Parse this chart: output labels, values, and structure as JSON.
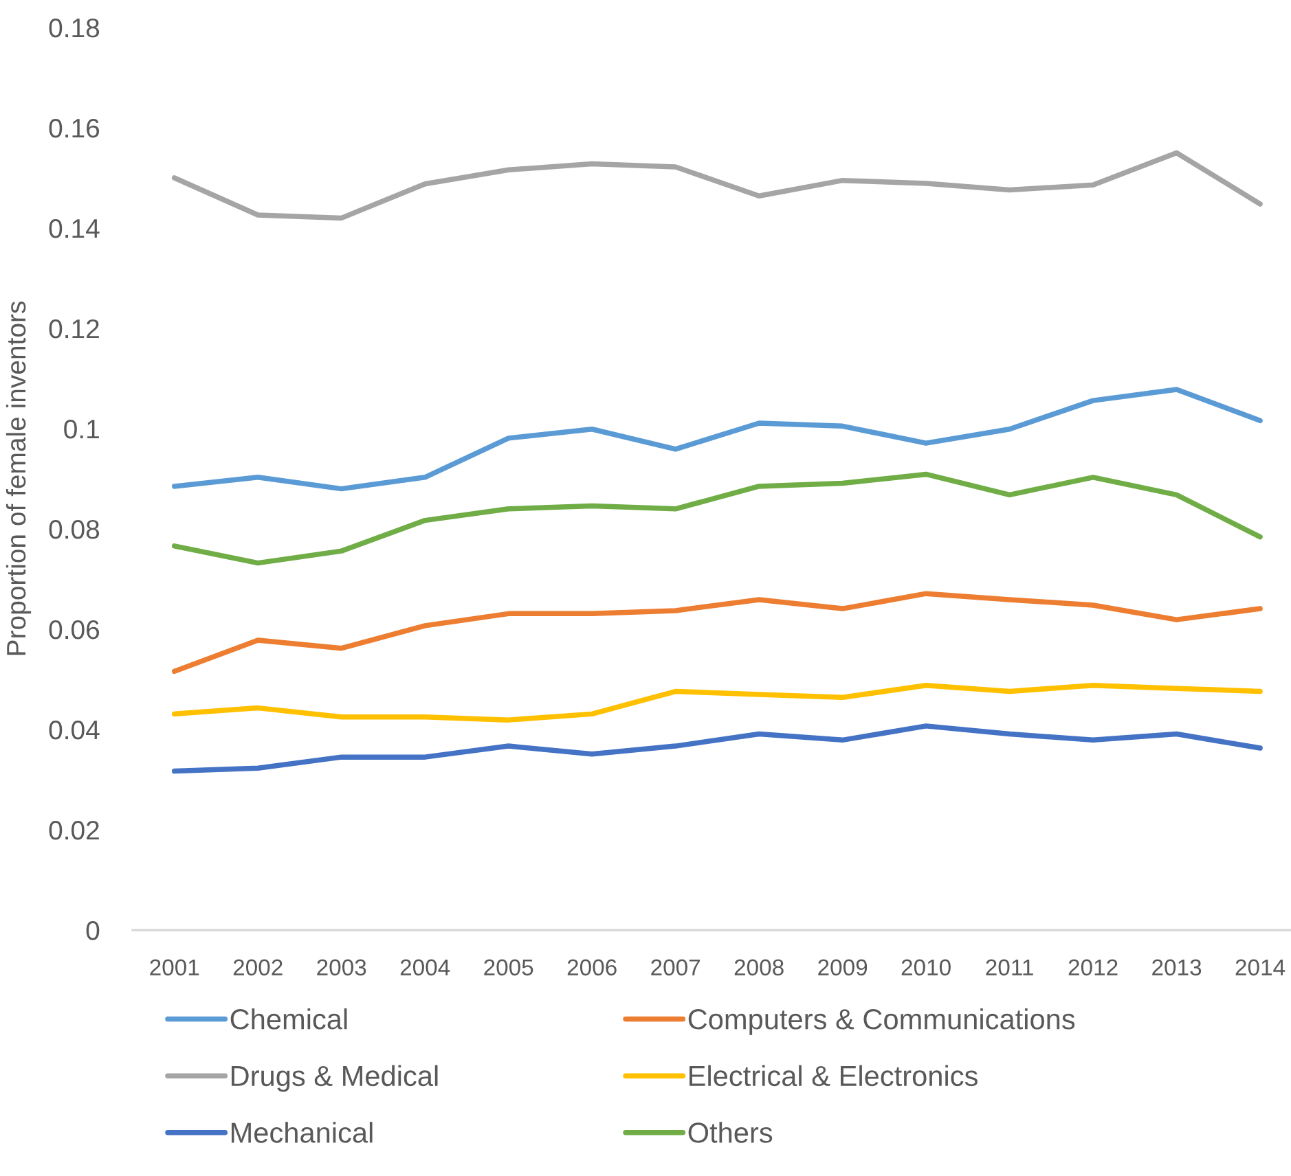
{
  "chart_data": {
    "type": "line",
    "ylabel": "Proportion of female inventors",
    "categories": [
      "2001",
      "2002",
      "2003",
      "2004",
      "2005",
      "2006",
      "2007",
      "2008",
      "2009",
      "2010",
      "2011",
      "2012",
      "2013",
      "2014"
    ],
    "series": [
      {
        "name": "Chemical",
        "color": "#5b9bd5",
        "values": [
          0.0885,
          0.0903,
          0.088,
          0.0903,
          0.0981,
          0.0999,
          0.0959,
          0.1011,
          0.1005,
          0.0971,
          0.0999,
          0.1056,
          0.1078,
          0.1016
        ]
      },
      {
        "name": "Computers & Communications",
        "color": "#ed7d31",
        "values": [
          0.0516,
          0.0578,
          0.0562,
          0.0607,
          0.0631,
          0.0631,
          0.0637,
          0.0659,
          0.0641,
          0.0671,
          0.0659,
          0.0648,
          0.0619,
          0.0641
        ]
      },
      {
        "name": "Drugs & Medical",
        "color": "#a5a5a5",
        "values": [
          0.15,
          0.1426,
          0.142,
          0.1488,
          0.1516,
          0.1528,
          0.1522,
          0.1464,
          0.1495,
          0.1489,
          0.1476,
          0.1486,
          0.155,
          0.1448
        ]
      },
      {
        "name": "Electrical & Electronics",
        "color": "#ffc000",
        "values": [
          0.0431,
          0.0443,
          0.0425,
          0.0425,
          0.0419,
          0.0431,
          0.0476,
          0.047,
          0.0464,
          0.0488,
          0.0476,
          0.0488,
          0.0482,
          0.0476
        ]
      },
      {
        "name": "Mechanical",
        "color": "#4472c4",
        "values": [
          0.0317,
          0.0323,
          0.0345,
          0.0345,
          0.0367,
          0.0351,
          0.0367,
          0.0391,
          0.0379,
          0.0407,
          0.0391,
          0.0379,
          0.0391,
          0.0363
        ]
      },
      {
        "name": "Others",
        "color": "#70ad47",
        "values": [
          0.0766,
          0.0732,
          0.0756,
          0.0817,
          0.084,
          0.0846,
          0.084,
          0.0885,
          0.0891,
          0.0909,
          0.0868,
          0.0903,
          0.0868,
          0.0784
        ]
      }
    ],
    "ylim": [
      0,
      0.18
    ],
    "yticks": [
      0,
      0.02,
      0.04,
      0.06,
      0.08,
      0.1,
      0.12,
      0.14,
      0.16,
      0.18
    ],
    "legend": "bottom",
    "grid": false,
    "marker": "none",
    "line_style": "solid"
  }
}
